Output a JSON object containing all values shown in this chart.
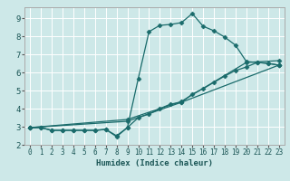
{
  "title": "",
  "xlabel": "Humidex (Indice chaleur)",
  "ylabel": "",
  "bg_color": "#cde8e8",
  "grid_color": "#b8d8d8",
  "line_color": "#1a6b6b",
  "xlim": [
    -0.5,
    23.5
  ],
  "ylim": [
    2.0,
    9.6
  ],
  "xticks": [
    0,
    1,
    2,
    3,
    4,
    5,
    6,
    7,
    8,
    9,
    10,
    11,
    12,
    13,
    14,
    15,
    16,
    17,
    18,
    19,
    20,
    21,
    22,
    23
  ],
  "yticks": [
    2,
    3,
    4,
    5,
    6,
    7,
    8,
    9
  ],
  "series": [
    {
      "x": [
        0,
        1,
        2,
        3,
        4,
        5,
        6,
        7,
        8,
        9,
        10,
        11,
        12,
        13,
        14,
        15,
        16,
        17,
        18,
        19,
        20,
        21,
        22,
        23
      ],
      "y": [
        2.95,
        2.95,
        2.8,
        2.8,
        2.8,
        2.8,
        2.8,
        2.85,
        2.5,
        2.95,
        5.65,
        8.25,
        8.6,
        8.65,
        8.75,
        9.25,
        8.55,
        8.3,
        7.95,
        7.5,
        6.6,
        6.55,
        6.5,
        6.4
      ],
      "marker": "D",
      "markersize": 2.5,
      "linestyle": "-"
    },
    {
      "x": [
        0,
        1,
        2,
        3,
        4,
        5,
        6,
        7,
        8,
        9,
        10,
        11,
        12,
        13,
        14,
        15,
        16,
        17,
        18,
        19,
        20,
        21,
        22,
        23
      ],
      "y": [
        2.95,
        2.95,
        2.8,
        2.8,
        2.8,
        2.8,
        2.8,
        2.85,
        2.45,
        2.95,
        3.5,
        3.7,
        4.0,
        4.25,
        4.35,
        4.8,
        5.1,
        5.45,
        5.8,
        6.1,
        6.3,
        6.55,
        6.5,
        6.4
      ],
      "marker": "D",
      "markersize": 2.5,
      "linestyle": "-"
    },
    {
      "x": [
        0,
        9,
        14,
        23
      ],
      "y": [
        2.95,
        3.3,
        4.35,
        6.4
      ],
      "marker": "D",
      "markersize": 2.5,
      "linestyle": "-"
    },
    {
      "x": [
        0,
        9,
        14,
        20,
        23
      ],
      "y": [
        2.95,
        3.4,
        4.4,
        6.55,
        6.65
      ],
      "marker": "D",
      "markersize": 2.5,
      "linestyle": "-"
    }
  ]
}
